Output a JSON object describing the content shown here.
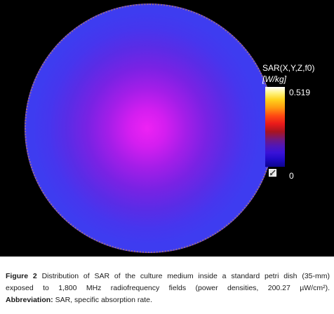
{
  "figure": {
    "colorbar": {
      "title": "SAR(X,Y,Z,f0)",
      "unit": "[W/kg]",
      "max_label": "0.519",
      "min_label": "0"
    },
    "colors": {
      "disk_center": "#ee22f4",
      "disk_edge": "#3e3cf0",
      "background": "#000000"
    },
    "scale_icon": "scale-toggle-icon"
  },
  "caption": {
    "label": "Figure 2",
    "line1_text": "Distribution of SAR of the culture medium inside a standard petri dish (35-mm)",
    "line2_text": "exposed to 1,800 MHz radiofrequency fields (power densities, 200.27 µW/cm²).",
    "abbrev_label": "Abbreviation:",
    "abbrev_text": "SAR, specific absorption rate."
  }
}
